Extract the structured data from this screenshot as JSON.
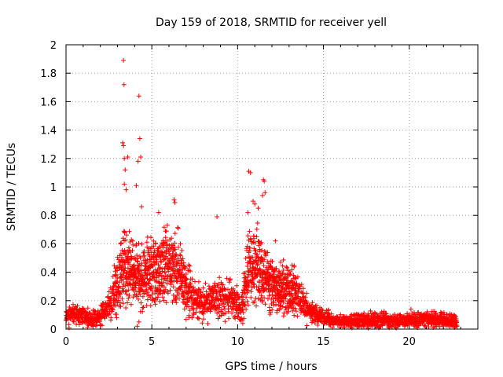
{
  "chart_data": {
    "type": "scatter",
    "title": "Day 159 of 2018, SRMTID for receiver yell",
    "xlabel": "GPS time / hours",
    "ylabel": "SRMTID / TECUs",
    "xlim": [
      0,
      24
    ],
    "ylim": [
      0,
      2
    ],
    "xticks": [
      0,
      5,
      10,
      15,
      20
    ],
    "yticks": [
      0,
      0.2,
      0.4,
      0.6,
      0.8,
      1,
      1.2,
      1.4,
      1.6,
      1.8,
      2
    ],
    "grid": true,
    "marker": "+",
    "series_color": "#ff0000",
    "profile": [
      [
        0.0,
        0.09
      ],
      [
        0.5,
        0.1
      ],
      [
        1.0,
        0.09
      ],
      [
        1.5,
        0.07
      ],
      [
        2.0,
        0.09
      ],
      [
        2.5,
        0.16
      ],
      [
        3.0,
        0.3
      ],
      [
        3.3,
        0.45
      ],
      [
        3.6,
        0.4
      ],
      [
        4.0,
        0.38
      ],
      [
        4.5,
        0.36
      ],
      [
        5.0,
        0.4
      ],
      [
        5.5,
        0.42
      ],
      [
        6.0,
        0.44
      ],
      [
        6.5,
        0.42
      ],
      [
        7.0,
        0.28
      ],
      [
        7.5,
        0.2
      ],
      [
        8.0,
        0.19
      ],
      [
        8.5,
        0.22
      ],
      [
        9.0,
        0.2
      ],
      [
        9.5,
        0.22
      ],
      [
        10.0,
        0.18
      ],
      [
        10.2,
        0.12
      ],
      [
        10.5,
        0.38
      ],
      [
        11.0,
        0.45
      ],
      [
        11.5,
        0.4
      ],
      [
        12.0,
        0.32
      ],
      [
        12.5,
        0.28
      ],
      [
        13.0,
        0.3
      ],
      [
        13.5,
        0.24
      ],
      [
        14.0,
        0.15
      ],
      [
        14.5,
        0.1
      ],
      [
        15.0,
        0.08
      ],
      [
        15.5,
        0.06
      ],
      [
        16.0,
        0.05
      ],
      [
        17.0,
        0.06
      ],
      [
        18.0,
        0.07
      ],
      [
        19.0,
        0.06
      ],
      [
        20.0,
        0.06
      ],
      [
        21.0,
        0.07
      ],
      [
        22.0,
        0.06
      ],
      [
        22.8,
        0.05
      ]
    ],
    "notable_points": [
      [
        3.35,
        1.89
      ],
      [
        3.38,
        1.72
      ],
      [
        4.25,
        1.64
      ],
      [
        4.3,
        1.34
      ],
      [
        3.3,
        1.31
      ],
      [
        3.35,
        1.29
      ],
      [
        4.35,
        1.21
      ],
      [
        3.4,
        1.2
      ],
      [
        3.6,
        1.21
      ],
      [
        4.2,
        1.18
      ],
      [
        3.45,
        1.12
      ],
      [
        3.4,
        1.02
      ],
      [
        4.1,
        1.01
      ],
      [
        3.5,
        0.98
      ],
      [
        4.4,
        0.86
      ],
      [
        6.3,
        0.91
      ],
      [
        6.35,
        0.89
      ],
      [
        5.4,
        0.82
      ],
      [
        8.8,
        0.79
      ],
      [
        10.65,
        1.11
      ],
      [
        10.75,
        1.1
      ],
      [
        11.5,
        1.05
      ],
      [
        11.55,
        1.04
      ],
      [
        11.6,
        0.96
      ],
      [
        11.45,
        0.94
      ],
      [
        10.9,
        0.9
      ],
      [
        11.0,
        0.88
      ],
      [
        11.2,
        0.85
      ],
      [
        10.6,
        0.82
      ],
      [
        12.2,
        0.62
      ],
      [
        11.1,
        0.65
      ],
      [
        4.15,
        0.02
      ],
      [
        4.25,
        0.05
      ],
      [
        10.3,
        0.04
      ],
      [
        20.1,
        0.14
      ]
    ]
  }
}
